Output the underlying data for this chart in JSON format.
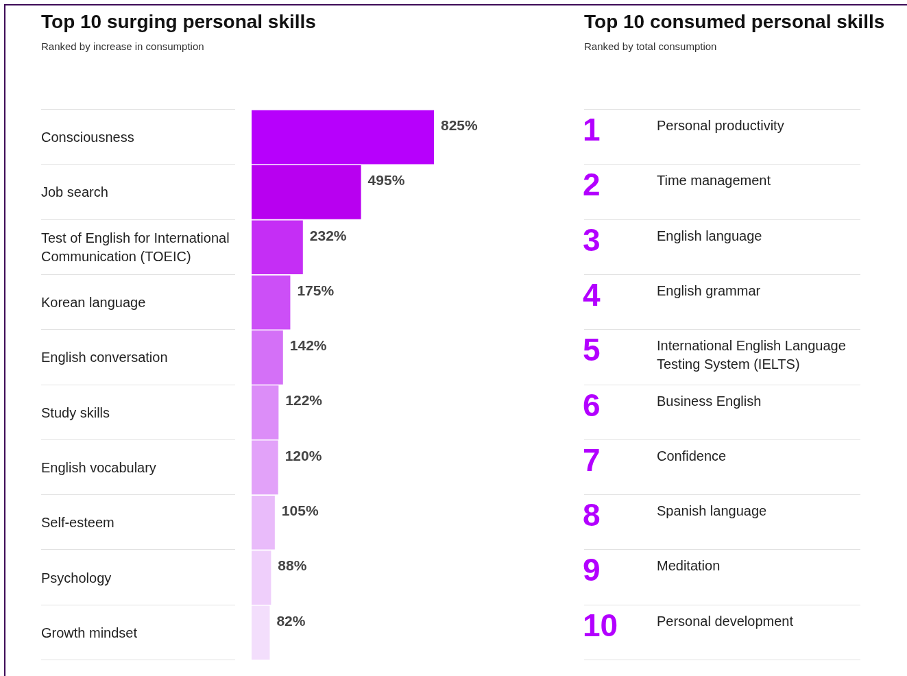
{
  "chart_data": [
    {
      "type": "bar",
      "orientation": "horizontal",
      "title": "Top 10 surging personal skills",
      "subtitle": "Ranked by increase in consumption",
      "categories": [
        "Consciousness",
        "Job search",
        "Test of English for International Communication (TOEIC)",
        "Korean language",
        "English conversation",
        "Study skills",
        "English vocabulary",
        "Self-esteem",
        "Psychology",
        "Growth mindset"
      ],
      "values": [
        825,
        495,
        232,
        175,
        142,
        122,
        120,
        105,
        88,
        82
      ],
      "value_labels": [
        "825%",
        "495%",
        "232%",
        "175%",
        "142%",
        "122%",
        "120%",
        "105%",
        "88%",
        "82%"
      ],
      "colors": [
        "#b700fc",
        "#b800f0",
        "#c52ef5",
        "#cc4ff7",
        "#d470f7",
        "#dc8df8",
        "#e2a2f9",
        "#e9bbfa",
        "#efcffb",
        "#f3defc"
      ],
      "xlim": [
        0,
        825
      ]
    },
    {
      "type": "other",
      "title": "Top 10 consumed personal skills",
      "subtitle": "Ranked by total consumption",
      "categories": [
        "Personal productivity",
        "Time management",
        "English language",
        "English grammar",
        "International English Language Testing System (IELTS)",
        "Business English",
        "Confidence",
        "Spanish language",
        "Meditation",
        "Personal development"
      ],
      "values": [
        1,
        2,
        3,
        4,
        5,
        6,
        7,
        8,
        9,
        10
      ],
      "data_labels": true
    }
  ]
}
